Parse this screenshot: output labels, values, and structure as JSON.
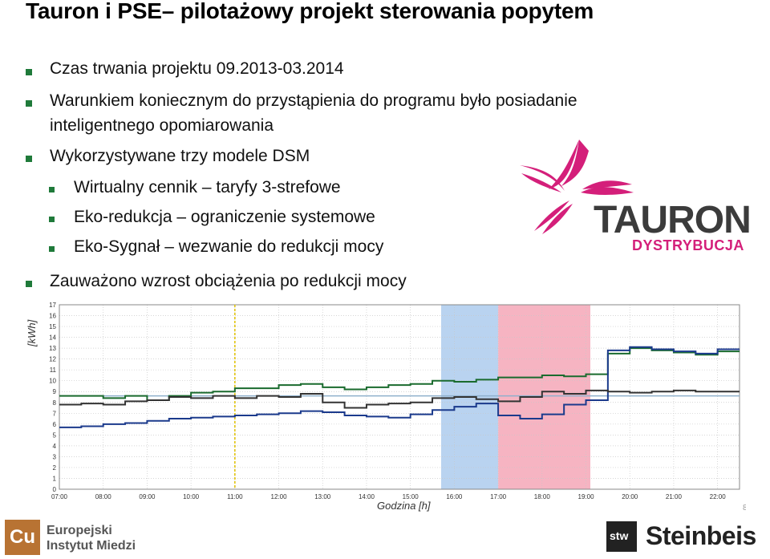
{
  "title": "Tauron i PSE– pilotażowy projekt sterowania popytem",
  "bullets": [
    "Czas trwania projektu 09.2013-03.2014",
    "Warunkiem koniecznym do przystąpienia do programu było posiadanie",
    "inteligentnego opomiarowania",
    "Wykorzystywane trzy modele DSM",
    "Wirtualny cennik – taryfy 3-strefowe",
    "Eko-redukcja – ograniczenie systemowe",
    "Eko-Sygnał – wezwanie do redukcji mocy",
    "Zauważono wzrost obciążenia po redukcji mocy"
  ],
  "logo": {
    "brand": "TAURON",
    "sub": "DYSTRYBUCJA",
    "brand_color": "#d41f7a"
  },
  "chart_data": {
    "type": "line",
    "ylabel": "[kWh]",
    "xlabel": "Godzina [h]",
    "ylim": [
      0,
      17
    ],
    "yticks": [
      0,
      1,
      2,
      3,
      4,
      5,
      6,
      7,
      8,
      9,
      10,
      11,
      12,
      13,
      14,
      15,
      16,
      17
    ],
    "xticks": [
      "07:00",
      "08:00",
      "09:00",
      "10:00",
      "11:00",
      "12:00",
      "13:00",
      "14:00",
      "15:00",
      "16:00",
      "17:00",
      "18:00",
      "19:00",
      "20:00",
      "21:00",
      "22:00"
    ],
    "reference_value": 8.6,
    "x": [
      7.0,
      7.5,
      8.0,
      8.5,
      9.0,
      9.5,
      10.0,
      10.5,
      11.0,
      11.5,
      12.0,
      12.5,
      13.0,
      13.5,
      14.0,
      14.5,
      15.0,
      15.5,
      16.0,
      16.5,
      17.0,
      17.5,
      18.0,
      18.5,
      19.0,
      19.5,
      20.0,
      20.5,
      21.0,
      21.5,
      22.0
    ],
    "series": [
      {
        "color": "#1a6b2e",
        "values": [
          8.6,
          8.6,
          8.4,
          8.6,
          8.2,
          8.6,
          8.9,
          9.0,
          9.3,
          9.3,
          9.6,
          9.7,
          9.4,
          9.2,
          9.4,
          9.6,
          9.7,
          10.0,
          9.9,
          10.1,
          10.3,
          10.3,
          10.5,
          10.4,
          10.6,
          12.5,
          13.0,
          12.8,
          12.6,
          12.4,
          12.7
        ]
      },
      {
        "color": "#1b3a8c",
        "values": [
          5.7,
          5.8,
          6.0,
          6.1,
          6.3,
          6.5,
          6.6,
          6.7,
          6.8,
          6.9,
          7.0,
          7.2,
          7.1,
          6.8,
          6.7,
          6.6,
          6.9,
          7.3,
          7.6,
          7.9,
          6.8,
          6.5,
          6.9,
          7.8,
          8.2,
          12.8,
          13.1,
          12.9,
          12.7,
          12.5,
          12.9
        ]
      },
      {
        "color": "#333333",
        "values": [
          7.8,
          7.9,
          7.8,
          8.1,
          8.2,
          8.5,
          8.4,
          8.6,
          8.4,
          8.6,
          8.5,
          8.8,
          8.0,
          7.5,
          7.8,
          7.9,
          8.0,
          8.4,
          8.5,
          8.3,
          8.1,
          8.5,
          9.0,
          8.8,
          9.1,
          9.0,
          8.9,
          9.0,
          9.1,
          9.0,
          9.0
        ]
      }
    ],
    "bands": [
      {
        "from": 15.7,
        "to": 17.0,
        "color": "#b9d3f0"
      },
      {
        "from": 17.0,
        "to": 19.1,
        "color": "#f6b4c2"
      }
    ],
    "page": "8"
  },
  "footer": {
    "left_logo": "Cu",
    "left_line1": "Europejski",
    "left_line2": "Instytut Miedzi",
    "right_logo": "stw",
    "right_name": "Steinbeis"
  }
}
